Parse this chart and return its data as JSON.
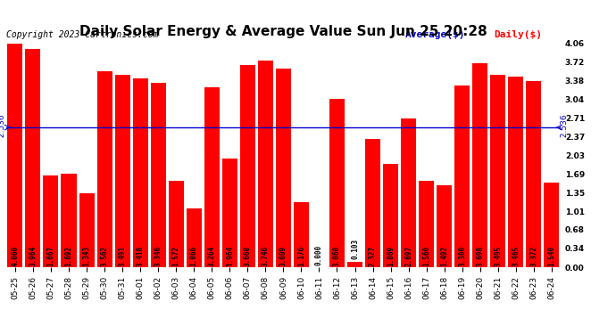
{
  "title": "Daily Solar Energy & Average Value Sun Jun 25 20:28",
  "copyright": "Copyright 2023 Cartronics.com",
  "legend_average": "Average($)",
  "legend_daily": "Daily($)",
  "average_value": 2.536,
  "categories": [
    "05-25",
    "05-26",
    "05-27",
    "05-28",
    "05-29",
    "05-30",
    "05-31",
    "06-01",
    "06-02",
    "06-03",
    "06-04",
    "06-05",
    "06-06",
    "06-07",
    "06-08",
    "06-09",
    "06-10",
    "06-11",
    "06-12",
    "06-13",
    "06-14",
    "06-15",
    "06-16",
    "06-17",
    "06-18",
    "06-19",
    "06-20",
    "06-21",
    "06-22",
    "06-23",
    "06-24"
  ],
  "values": [
    4.06,
    3.964,
    1.667,
    1.692,
    1.343,
    3.562,
    3.491,
    3.418,
    3.346,
    1.572,
    1.066,
    3.264,
    1.964,
    3.668,
    3.746,
    3.609,
    1.176,
    0.0,
    3.06,
    0.103,
    2.327,
    1.869,
    2.697,
    1.56,
    1.492,
    3.3,
    3.698,
    3.495,
    3.465,
    3.372,
    1.54
  ],
  "bar_color": "#ff0000",
  "average_line_color": "#0000cc",
  "background_color": "#ffffff",
  "grid_color": "#bbbbbb",
  "ylim": [
    0,
    4.06
  ],
  "yticks": [
    0.0,
    0.34,
    0.68,
    1.01,
    1.35,
    1.69,
    2.03,
    2.37,
    2.71,
    3.04,
    3.38,
    3.72,
    4.06
  ],
  "title_fontsize": 11,
  "copyright_fontsize": 7,
  "tick_fontsize": 6.5,
  "bar_label_fontsize": 5.5,
  "legend_fontsize": 8,
  "avg_label_fontsize": 6.5
}
